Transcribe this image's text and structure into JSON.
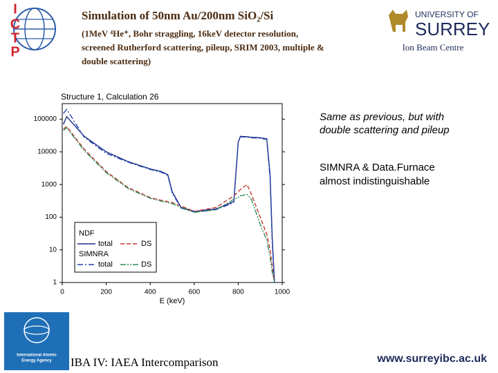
{
  "header": {
    "title": "Simulation of 50nm Au/200nm SiO₂/Si",
    "subtitle": [
      "(1MeV ⁴He⁺,  Bohr straggling, 16keV detector resolution,",
      "screened Rutherford scattering, pileup, SRIM 2003, multiple &",
      "double scattering)"
    ],
    "left_logo": [
      "I",
      "C",
      "T",
      "P"
    ],
    "right_logo": {
      "line1": "UNIVERSITY OF",
      "line2": "SURREY",
      "caption": "Ion Beam Centre"
    }
  },
  "notes": [
    [
      "Same as previous,  but with",
      "double scattering and pileup"
    ],
    [
      "SIMNRA & Data.Furnace",
      "almost indistinguishable"
    ]
  ],
  "footer": {
    "logo_text": [
      "International Atomic",
      "Energy Agency"
    ],
    "left": "IBA IV:  IAEA Intercomparison",
    "right": "www.surreyibc.ac.uk"
  },
  "chart_data": {
    "type": "line",
    "title": "Structure 1, Calculation 26",
    "x_label": "E (keV)",
    "x": [
      5,
      20,
      100,
      200,
      300,
      400,
      450,
      480,
      500,
      540,
      600,
      700,
      780,
      800,
      810,
      840,
      860,
      900,
      930,
      945,
      955,
      965
    ],
    "xlim": [
      0,
      1000
    ],
    "xticks": [
      0,
      200,
      400,
      600,
      800,
      1000
    ],
    "ylim": [
      1,
      300000
    ],
    "yticks": [
      1,
      10,
      100,
      1000,
      10000,
      100000
    ],
    "log_scale": "y",
    "groups": [
      {
        "name": "NDF",
        "series": [
          {
            "name": "total",
            "color": "#1a2a8a",
            "dash": "solid",
            "values": [
              70000,
              120000,
              30000,
              10000,
              5000,
              3000,
              2500,
              2000,
              600,
              200,
              150,
              180,
              300,
              20000,
              30000,
              29000,
              28000,
              27000,
              25000,
              2000,
              20,
              1
            ]
          },
          {
            "name": "DS",
            "color": "#c0392b",
            "dash": "dashed",
            "values": [
              50000,
              60000,
              12000,
              2500,
              800,
              400,
              330,
              300,
              280,
              220,
              150,
              200,
              450,
              600,
              700,
              1000,
              500,
              100,
              30,
              10,
              3,
              1
            ]
          }
        ]
      },
      {
        "name": "SIMNRA",
        "series": [
          {
            "name": "total",
            "color": "#2244aa",
            "dash": "dashdot",
            "values": [
              150000,
              200000,
              28000,
              9000,
              4800,
              2900,
              2400,
              1900,
              550,
              190,
              145,
              170,
              280,
              19000,
              29000,
              28000,
              27000,
              26000,
              24000,
              1500,
              15,
              1
            ]
          },
          {
            "name": "DS",
            "color": "#2e8b57",
            "dash": "dashdotdot",
            "values": [
              45000,
              55000,
              11000,
              2300,
              750,
              380,
              310,
              280,
              260,
              200,
              140,
              170,
              350,
              400,
              450,
              500,
              350,
              60,
              20,
              6,
              2,
              1
            ]
          }
        ]
      }
    ]
  }
}
